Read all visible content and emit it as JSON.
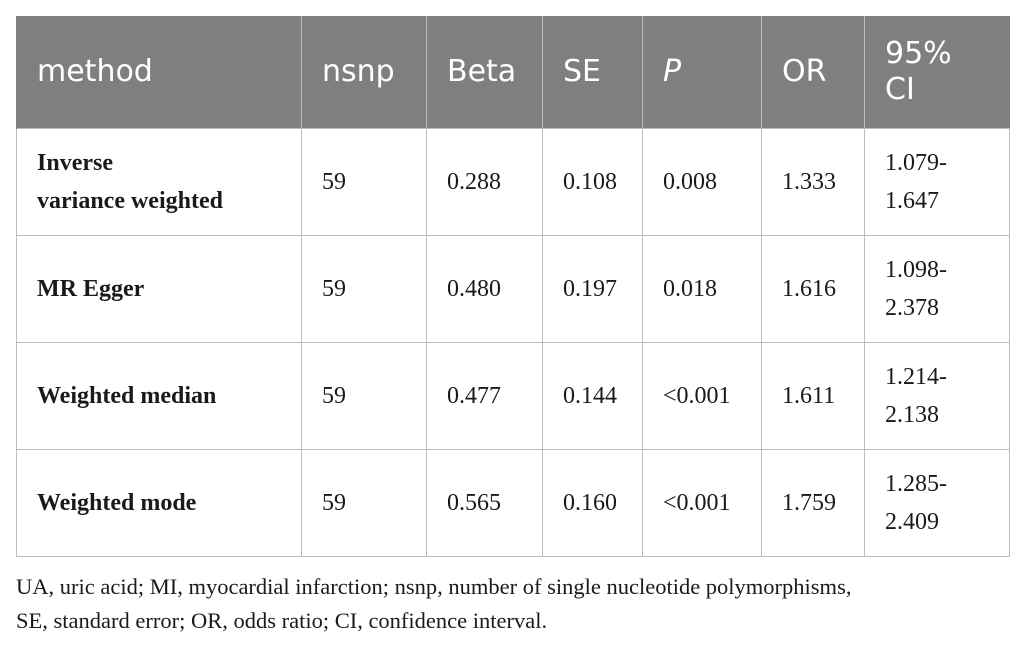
{
  "table": {
    "headers": {
      "method": "method",
      "nsnp": "nsnp",
      "beta": "Beta",
      "se": "SE",
      "p": "P",
      "or": "OR",
      "ci_line1": "95%",
      "ci_line2": "CI"
    },
    "rows": [
      {
        "method_line1": "Inverse",
        "method_line2": "variance weighted",
        "nsnp": "59",
        "beta": "0.288",
        "se": "0.108",
        "p": "0.008",
        "or": "1.333",
        "ci_line1": "1.079-",
        "ci_line2": "1.647"
      },
      {
        "method": "MR Egger",
        "nsnp": "59",
        "beta": "0.480",
        "se": "0.197",
        "p": "0.018",
        "or": "1.616",
        "ci_line1": "1.098-",
        "ci_line2": "2.378"
      },
      {
        "method": "Weighted median",
        "nsnp": "59",
        "beta": "0.477",
        "se": "0.144",
        "p": "<0.001",
        "or": "1.611",
        "ci_line1": "1.214-",
        "ci_line2": "2.138"
      },
      {
        "method": "Weighted mode",
        "nsnp": "59",
        "beta": "0.565",
        "se": "0.160",
        "p": "<0.001",
        "or": "1.759",
        "ci_line1": "1.285-",
        "ci_line2": "2.409"
      }
    ]
  },
  "footnote": {
    "line1": "UA, uric acid; MI, myocardial infarction; nsnp, number of single nucleotide polymorphisms,",
    "line2": "SE, standard error; OR, odds ratio; CI, confidence interval."
  }
}
